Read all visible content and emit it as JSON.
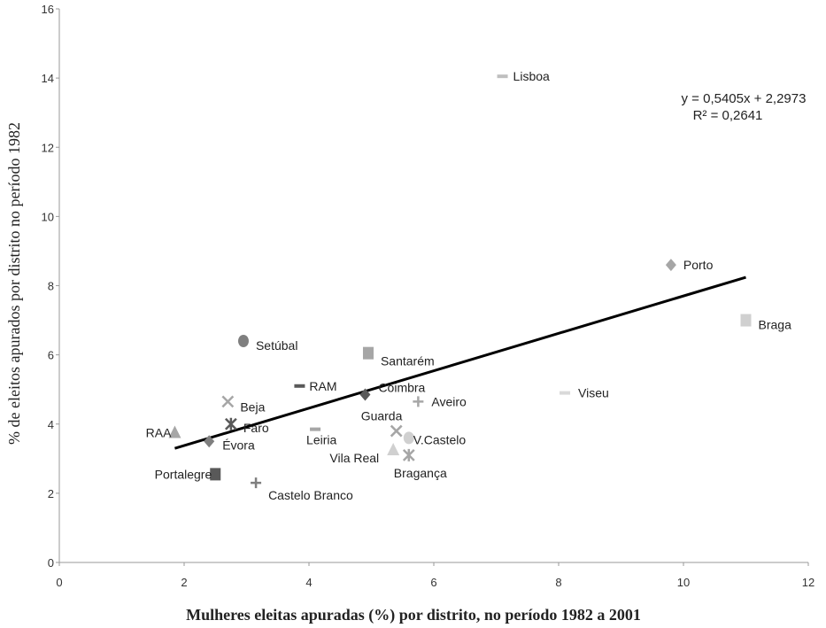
{
  "chart_data": {
    "type": "scatter",
    "xlabel": "Mulheres eleitas apuradas (%) por distrito, no período 1982 a 2001",
    "ylabel": "% de eleitos apurados por distrito no período 1982",
    "xlim": [
      0,
      12
    ],
    "ylim": [
      0,
      16
    ],
    "x_ticks": [
      "0",
      "2",
      "4",
      "6",
      "8",
      "10",
      "12"
    ],
    "y_ticks": [
      "0",
      "2",
      "4",
      "6",
      "8",
      "10",
      "12",
      "14",
      "16"
    ],
    "grid": false,
    "trendline": {
      "equation": "y = 0,5405x + 2,2973",
      "r2": "R² = 0,2641",
      "slope": 0.5405,
      "intercept": 2.2973,
      "x_range": [
        1.85,
        11.0
      ]
    },
    "points": [
      {
        "label": "Lisboa",
        "x": 7.1,
        "y": 14.05,
        "marker": "dash",
        "color": "#bfbfbf"
      },
      {
        "label": "Porto",
        "x": 9.8,
        "y": 8.6,
        "marker": "diamond",
        "color": "#a6a6a6"
      },
      {
        "label": "Braga",
        "x": 11.0,
        "y": 7.0,
        "marker": "square",
        "color": "#d0d0d0"
      },
      {
        "label": "Setúbal",
        "x": 2.95,
        "y": 6.4,
        "marker": "circle",
        "color": "#7f7f7f"
      },
      {
        "label": "Santarém",
        "x": 4.95,
        "y": 6.05,
        "marker": "square",
        "color": "#a6a6a6"
      },
      {
        "label": "RAM",
        "x": 3.85,
        "y": 5.1,
        "marker": "dash",
        "color": "#595959"
      },
      {
        "label": "Coimbra",
        "x": 4.9,
        "y": 4.85,
        "marker": "diamond",
        "color": "#595959"
      },
      {
        "label": "Viseu",
        "x": 8.1,
        "y": 4.9,
        "marker": "dash",
        "color": "#d9d9d9"
      },
      {
        "label": "Aveiro",
        "x": 5.75,
        "y": 4.65,
        "marker": "plus",
        "color": "#a6a6a6"
      },
      {
        "label": "Beja",
        "x": 2.7,
        "y": 4.65,
        "marker": "x",
        "color": "#a6a6a6"
      },
      {
        "label": "Faro",
        "x": 2.75,
        "y": 4.0,
        "marker": "star",
        "color": "#595959"
      },
      {
        "label": "Leiria",
        "x": 4.1,
        "y": 3.85,
        "marker": "dash",
        "color": "#a6a6a6"
      },
      {
        "label": "Guarda",
        "x": 5.4,
        "y": 3.8,
        "marker": "x",
        "color": "#a6a6a6"
      },
      {
        "label": "V.Castelo",
        "x": 5.6,
        "y": 3.6,
        "marker": "circle",
        "color": "#d0d0d0"
      },
      {
        "label": "RAA",
        "x": 1.85,
        "y": 3.75,
        "marker": "triangle",
        "color": "#a6a6a6"
      },
      {
        "label": "Évora",
        "x": 2.4,
        "y": 3.5,
        "marker": "diamond",
        "color": "#7f7f7f"
      },
      {
        "label": "Vila Real",
        "x": 5.35,
        "y": 3.25,
        "marker": "triangle",
        "color": "#d0d0d0"
      },
      {
        "label": "Bragança",
        "x": 5.6,
        "y": 3.1,
        "marker": "star",
        "color": "#a6a6a6"
      },
      {
        "label": "Portalegre",
        "x": 2.5,
        "y": 2.55,
        "marker": "square",
        "color": "#595959"
      },
      {
        "label": "Castelo Branco",
        "x": 3.15,
        "y": 2.3,
        "marker": "plus",
        "color": "#7f7f7f"
      }
    ]
  }
}
